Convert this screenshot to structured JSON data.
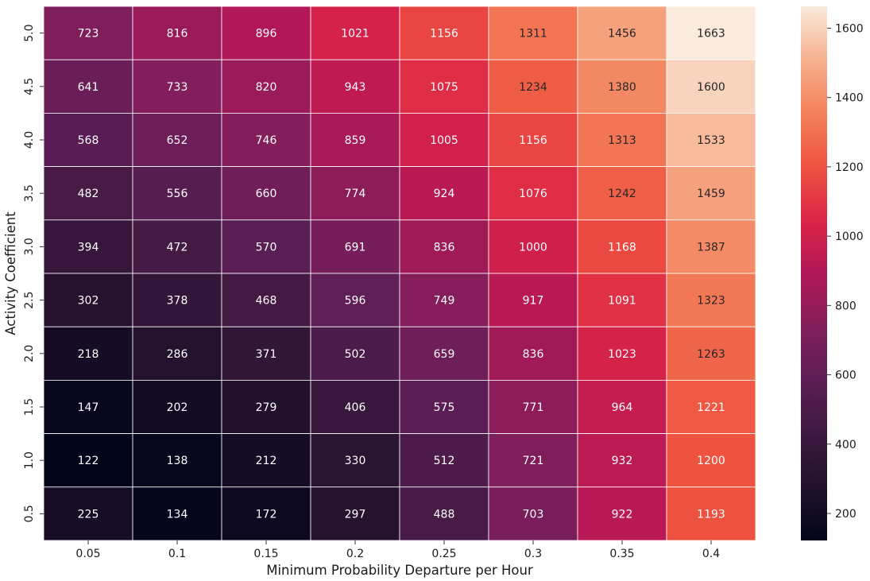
{
  "chart_data": {
    "type": "heatmap",
    "title": "",
    "xlabel": "Minimum Probability Departure per Hour",
    "ylabel": "Activity Coefficient",
    "x_categories": [
      "0.05",
      "0.1",
      "0.15",
      "0.2",
      "0.25",
      "0.3",
      "0.35",
      "0.4"
    ],
    "y_categories": [
      "5.0",
      "4.5",
      "4.0",
      "3.5",
      "3.0",
      "2.5",
      "2.0",
      "1.5",
      "1.0",
      "0.5"
    ],
    "values": [
      [
        723,
        816,
        896,
        1021,
        1156,
        1311,
        1456,
        1663
      ],
      [
        641,
        733,
        820,
        943,
        1075,
        1234,
        1380,
        1600
      ],
      [
        568,
        652,
        746,
        859,
        1005,
        1156,
        1313,
        1533
      ],
      [
        482,
        556,
        660,
        774,
        924,
        1076,
        1242,
        1459
      ],
      [
        394,
        472,
        570,
        691,
        836,
        1000,
        1168,
        1387
      ],
      [
        302,
        378,
        468,
        596,
        749,
        917,
        1091,
        1323
      ],
      [
        218,
        286,
        371,
        502,
        659,
        836,
        1023,
        1263
      ],
      [
        147,
        202,
        279,
        406,
        575,
        771,
        964,
        1221
      ],
      [
        122,
        138,
        212,
        330,
        512,
        721,
        932,
        1200
      ],
      [
        225,
        134,
        172,
        297,
        488,
        703,
        922,
        1193
      ]
    ],
    "colorbar": {
      "min": 122,
      "max": 1663,
      "ticks": [
        "200",
        "400",
        "600",
        "800",
        "1000",
        "1200",
        "1400",
        "1600"
      ],
      "colormap": "rocket"
    },
    "grid": false,
    "annotations": true
  }
}
